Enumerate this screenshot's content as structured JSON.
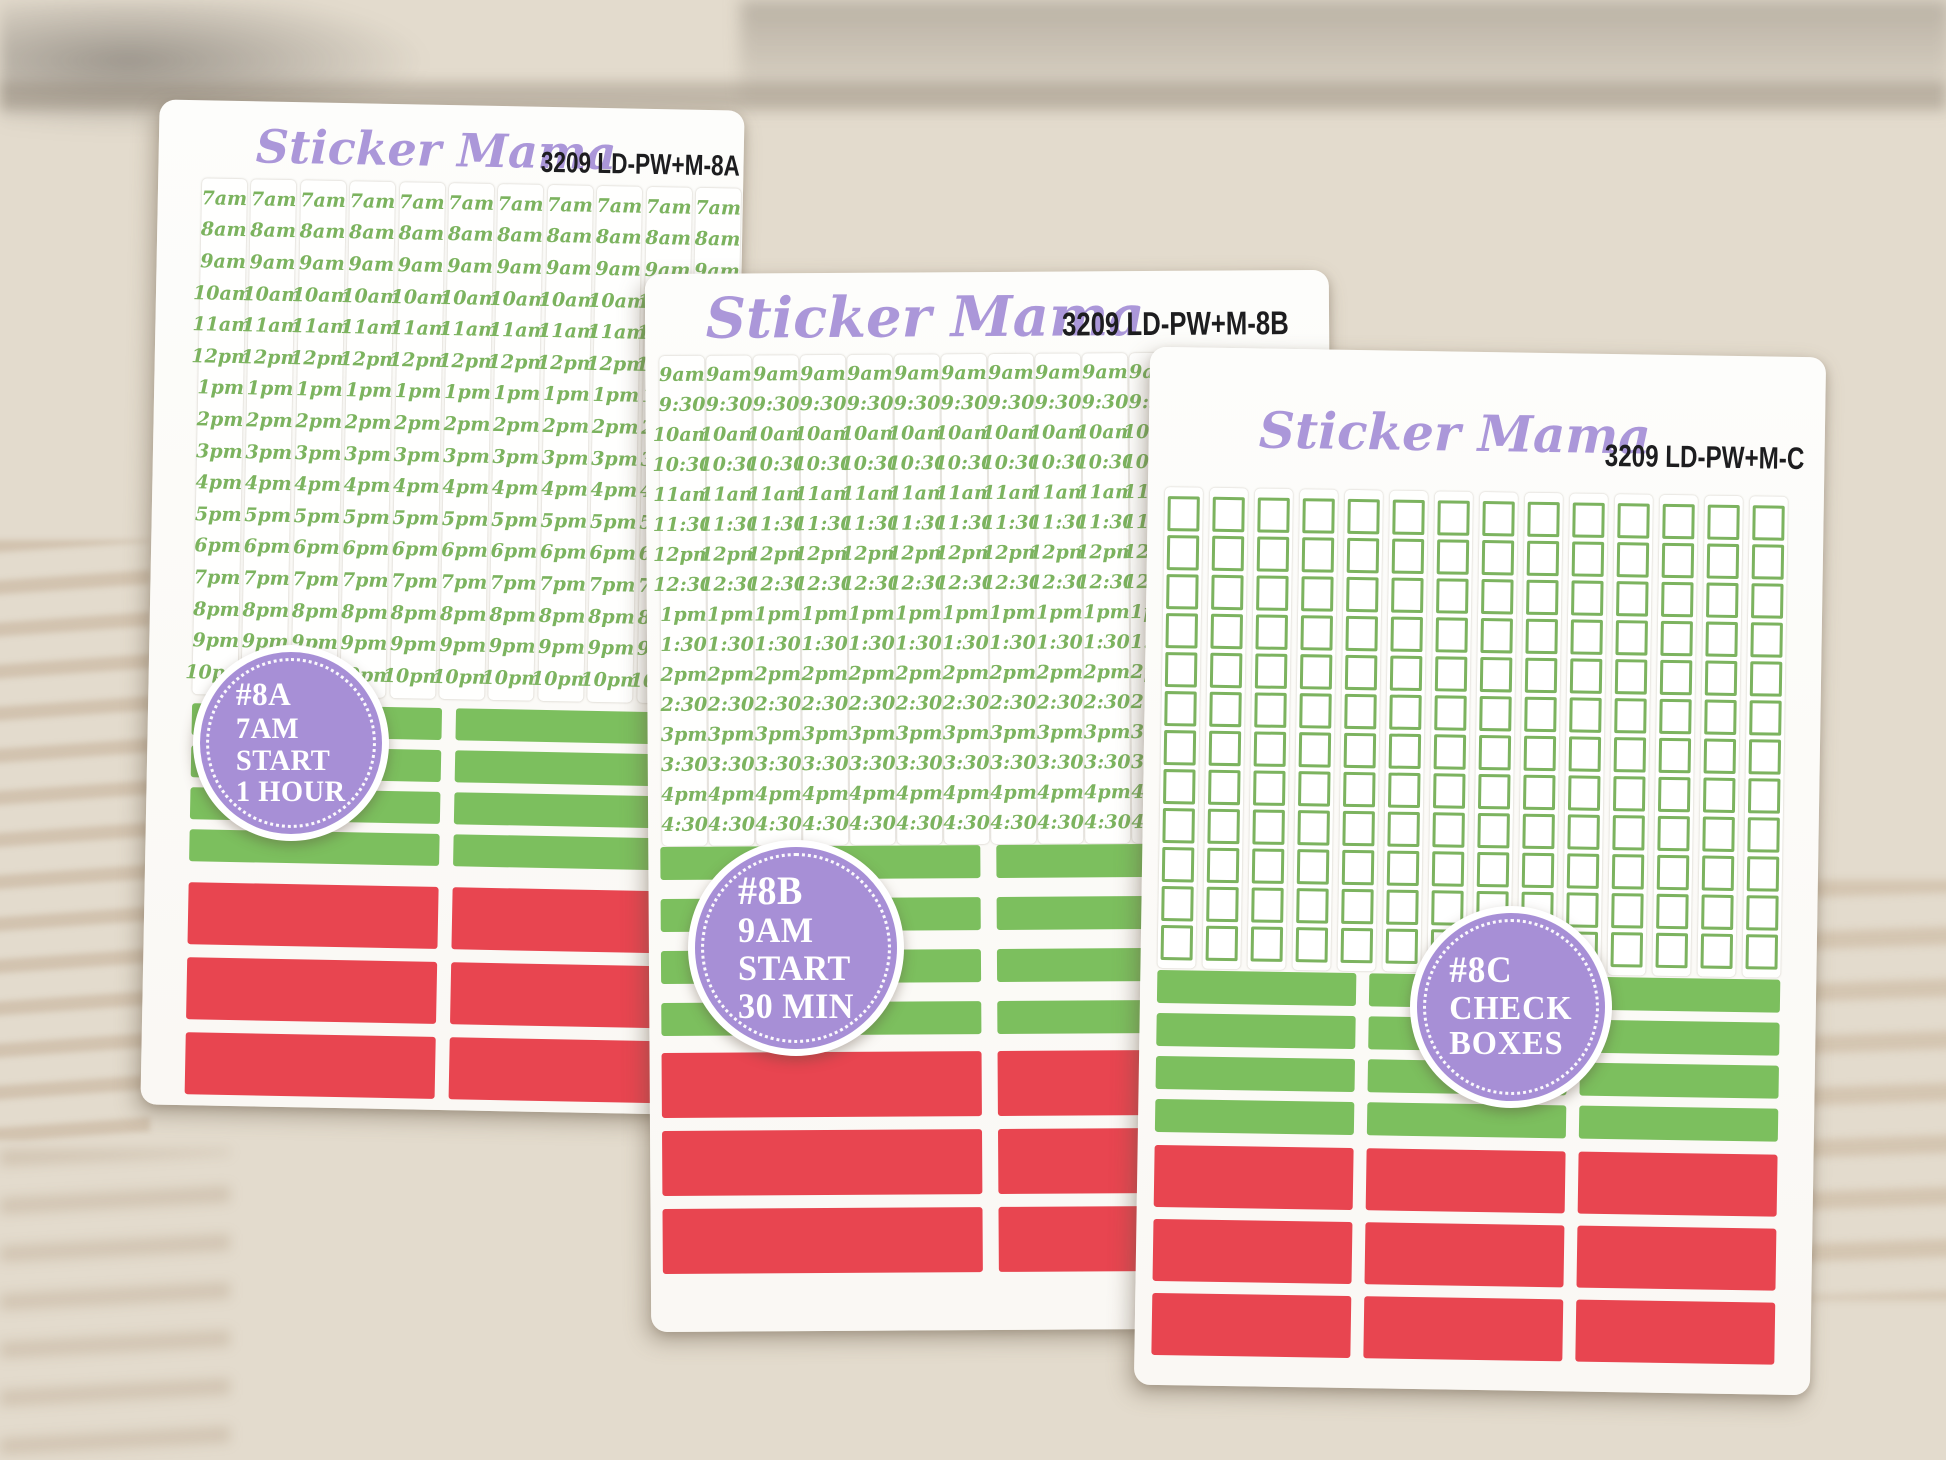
{
  "colors": {
    "brand_purple": "#ab97d9",
    "badge_purple": "#a78fd6",
    "time_green": "#7cb35f",
    "sticker_green": "#7cbf5e",
    "sticker_red": "#e84550",
    "code_black": "#1d1d1f"
  },
  "sheets": [
    {
      "brand": "Sticker Mama",
      "code": "3209 LD-PW+M-8A",
      "badge_lines": [
        "#8A",
        "7AM",
        "START",
        "1 HOUR"
      ],
      "times": [
        "7am",
        "8am",
        "9am",
        "10am",
        "11am",
        "12pm",
        "1pm",
        "2pm",
        "3pm",
        "4pm",
        "5pm",
        "6pm",
        "7pm",
        "8pm",
        "9pm",
        "10pm"
      ],
      "time_columns": 11,
      "green_rows": 4,
      "green_cols": 2,
      "red_rows": 3,
      "red_cols": 2
    },
    {
      "brand": "Sticker Mama",
      "code": "3209 LD-PW+M-8B",
      "badge_lines": [
        "#8B",
        "9AM",
        "START",
        "30 MIN"
      ],
      "times": [
        "9am",
        "9:30",
        "10am",
        "10:30",
        "11am",
        "11:30",
        "12pm",
        "12:30",
        "1pm",
        "1:30",
        "2pm",
        "2:30",
        "3pm",
        "3:30",
        "4pm",
        "4:30"
      ],
      "time_columns": 14,
      "green_rows": 4,
      "green_cols": 2,
      "red_rows": 3,
      "red_cols": 2
    },
    {
      "brand": "Sticker Mama",
      "code": "3209 LD-PW+M-C",
      "badge_lines": [
        "#8C",
        "CHECK",
        "BOXES"
      ],
      "checkbox_columns": 14,
      "checkbox_rows": 12,
      "green_rows": 4,
      "green_cols": 3,
      "red_rows": 3,
      "red_cols": 3
    }
  ]
}
